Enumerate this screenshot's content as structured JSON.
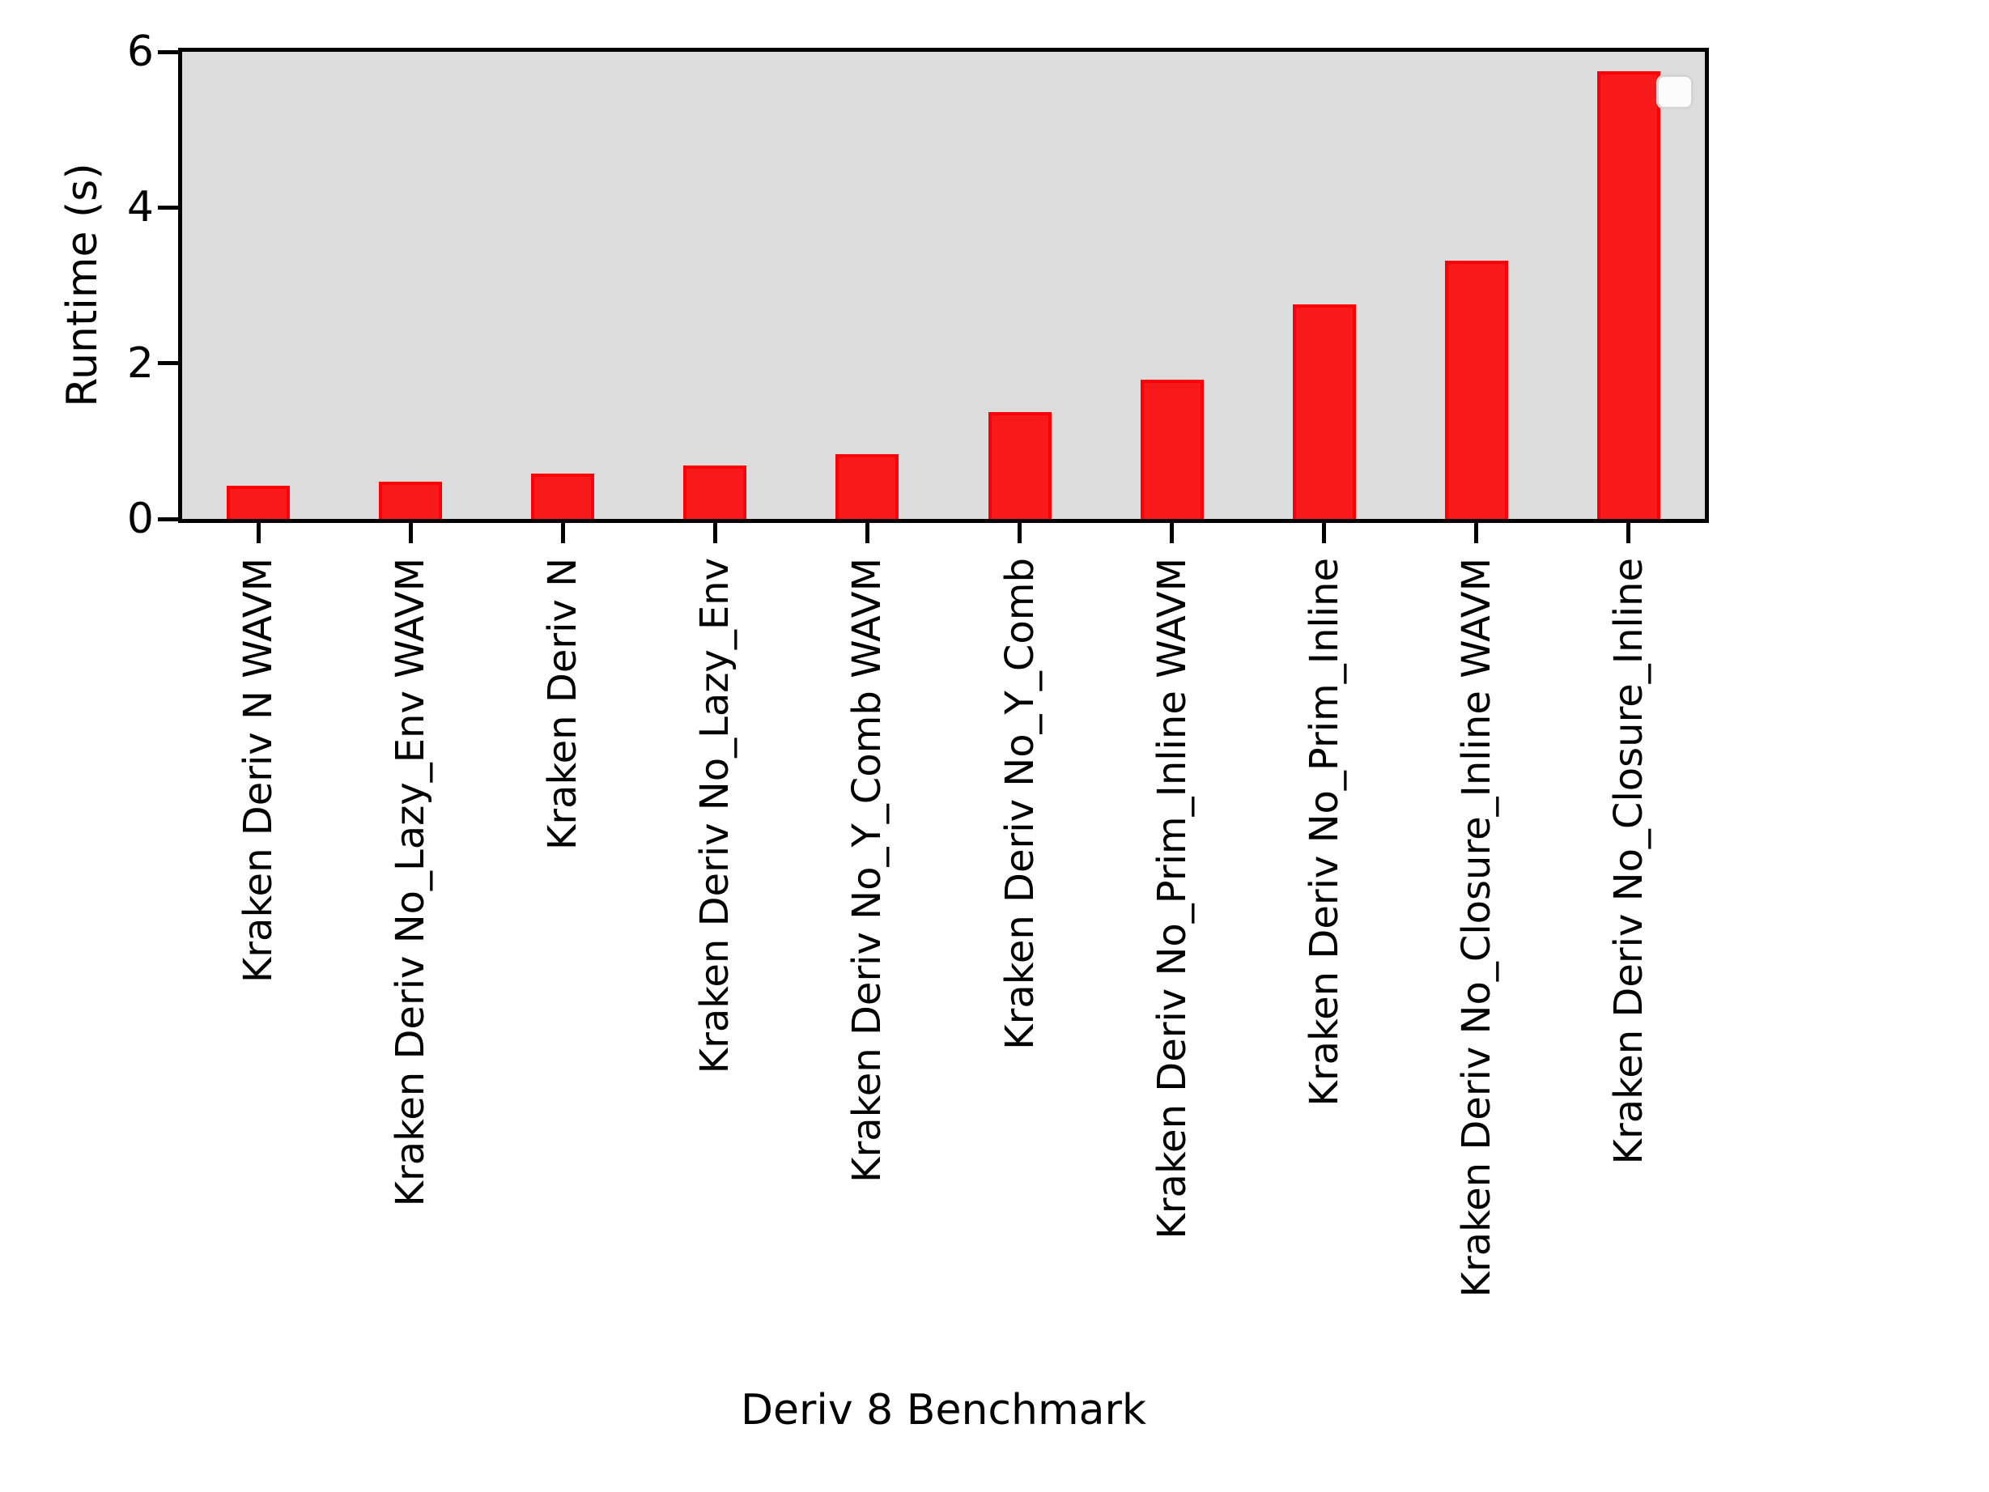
{
  "chart_data": {
    "type": "bar",
    "title": "",
    "xlabel": "Deriv 8 Benchmark",
    "ylabel": "Runtime (s)",
    "categories": [
      "Kraken Deriv N WAVM",
      "Kraken Deriv No_Lazy_Env WAVM",
      "Kraken Deriv N",
      "Kraken Deriv No_Lazy_Env",
      "Kraken Deriv No_Y_Comb WAVM",
      "Kraken Deriv No_Y_Comb",
      "Kraken Deriv No_Prim_Inline WAVM",
      "Kraken Deriv No_Prim_Inline",
      "Kraken Deriv No_Closure_Inline WAVM",
      "Kraken Deriv No_Closure_Inline"
    ],
    "values": [
      0.43,
      0.48,
      0.58,
      0.69,
      0.83,
      1.37,
      1.79,
      2.76,
      3.32,
      5.75
    ],
    "ylim": [
      0,
      6
    ],
    "yticks": [
      0,
      2,
      4,
      6
    ],
    "grid": false,
    "legend": {
      "visible": true,
      "entries": [],
      "position": "upper-right"
    },
    "colors": {
      "bar_fill": "#f8191a",
      "bar_edge": "#fb0007",
      "plot_background": "#dcdcdc",
      "figure_background": "#ffffff",
      "axis": "#000000",
      "legend_fill": "#fcfcfc",
      "legend_border": "#d4d4d4"
    }
  }
}
